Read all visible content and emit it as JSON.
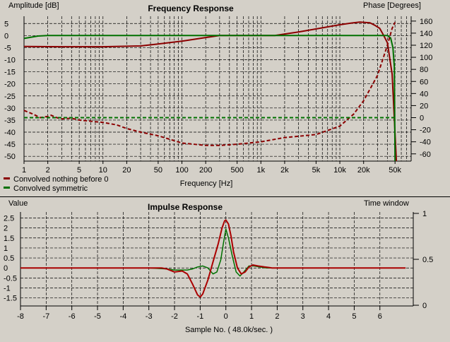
{
  "chart_data": [
    {
      "type": "line",
      "title": "Frequency Response",
      "xlabel": "Frequency [Hz]",
      "ylabel": "Amplitude [dB]",
      "y2label": "Phase [Degrees]",
      "xscale": "log",
      "xlim": [
        1,
        80000
      ],
      "ylim": [
        -52,
        8
      ],
      "y2lim": [
        -72,
        168
      ],
      "grid": true,
      "xticks": [
        {
          "v": 1,
          "l": "1"
        },
        {
          "v": 2,
          "l": "2"
        },
        {
          "v": 5,
          "l": "5"
        },
        {
          "v": 10,
          "l": "10"
        },
        {
          "v": 20,
          "l": "20"
        },
        {
          "v": 50,
          "l": "50"
        },
        {
          "v": 100,
          "l": "100"
        },
        {
          "v": 200,
          "l": "200"
        },
        {
          "v": 500,
          "l": "500"
        },
        {
          "v": 1000,
          "l": "1k"
        },
        {
          "v": 2000,
          "l": "2k"
        },
        {
          "v": 5000,
          "l": "5k"
        },
        {
          "v": 10000,
          "l": "10k"
        },
        {
          "v": 20000,
          "l": "20k"
        },
        {
          "v": 50000,
          "l": "50k"
        }
      ],
      "yticks": [
        5,
        0,
        -5,
        -10,
        -15,
        -20,
        -25,
        -30,
        -35,
        -40,
        -45,
        -50
      ],
      "y2ticks": [
        160,
        140,
        120,
        100,
        80,
        60,
        40,
        20,
        0,
        -20,
        -40,
        -60
      ],
      "legend": [
        {
          "name": "Convolved nothing before 0",
          "color": "#8b0000"
        },
        {
          "name": "Convolved symmetric",
          "color": "#007000"
        }
      ],
      "series": [
        {
          "name": "Convolved nothing before 0",
          "kind": "amplitude",
          "color": "#8b0000",
          "dash": false,
          "points": [
            [
              1,
              -4.5
            ],
            [
              3,
              -4.6
            ],
            [
              10,
              -4.6
            ],
            [
              30,
              -4.3
            ],
            [
              50,
              -3.5
            ],
            [
              100,
              -2.3
            ],
            [
              200,
              -0.8
            ],
            [
              300,
              0
            ],
            [
              600,
              0
            ],
            [
              1500,
              0
            ],
            [
              3000,
              1.5
            ],
            [
              6000,
              3.2
            ],
            [
              10000,
              4.5
            ],
            [
              14000,
              5.2
            ],
            [
              18000,
              5.6
            ],
            [
              24000,
              5.3
            ],
            [
              28000,
              4.2
            ],
            [
              32000,
              3
            ],
            [
              36000,
              0
            ],
            [
              40000,
              -3
            ],
            [
              46000,
              -16
            ],
            [
              52000,
              -52
            ]
          ]
        },
        {
          "name": "Convolved symmetric",
          "kind": "amplitude",
          "color": "#007000",
          "dash": false,
          "points": [
            [
              1,
              -1.2
            ],
            [
              1.5,
              -0.2
            ],
            [
              2,
              0
            ],
            [
              10,
              0
            ],
            [
              100,
              0
            ],
            [
              1000,
              0
            ],
            [
              10000,
              0
            ],
            [
              20000,
              0
            ],
            [
              40000,
              0
            ],
            [
              44000,
              -1
            ],
            [
              47000,
              -5
            ],
            [
              49000,
              -13
            ],
            [
              50000,
              -52
            ]
          ]
        },
        {
          "name": "Convolved nothing before 0",
          "kind": "phase",
          "color": "#8b0000",
          "dash": true,
          "points": [
            [
              1,
              12
            ],
            [
              1.3,
              6
            ],
            [
              1.6,
              0
            ],
            [
              2,
              2
            ],
            [
              2.2,
              4
            ],
            [
              2.6,
              0
            ],
            [
              3,
              -2
            ],
            [
              4,
              -1
            ],
            [
              5,
              -4
            ],
            [
              10,
              -8
            ],
            [
              15,
              -12
            ],
            [
              20,
              -18
            ],
            [
              30,
              -24
            ],
            [
              50,
              -30
            ],
            [
              100,
              -42
            ],
            [
              200,
              -46
            ],
            [
              300,
              -46
            ],
            [
              500,
              -44
            ],
            [
              1000,
              -40
            ],
            [
              2000,
              -33
            ],
            [
              5000,
              -28
            ],
            [
              10000,
              -14
            ],
            [
              15000,
              6
            ],
            [
              20000,
              28
            ],
            [
              30000,
              70
            ],
            [
              40000,
              120
            ],
            [
              46000,
              148
            ],
            [
              50000,
              158
            ]
          ]
        },
        {
          "name": "Convolved symmetric",
          "kind": "phase",
          "color": "#007000",
          "dash": true,
          "points": [
            [
              1,
              0
            ],
            [
              50000,
              0
            ]
          ]
        }
      ]
    },
    {
      "type": "line",
      "title": "Impulse Response",
      "xlabel": "Sample No. ( 48.0k/sec. )",
      "ylabel": "Value",
      "y2label": "Time window",
      "xlim": [
        -8,
        7.3
      ],
      "ylim": [
        -1.9,
        2.8
      ],
      "y2lim": [
        0,
        1
      ],
      "grid": true,
      "xticks": [
        -8,
        -7,
        -6,
        -5,
        -4,
        -3,
        -2,
        -1,
        0,
        1,
        2,
        3,
        4,
        5,
        6
      ],
      "yticks": [
        {
          "v": 2.5,
          "l": "2.5"
        },
        {
          "v": 2,
          "l": "2"
        },
        {
          "v": 1.5,
          "l": "1.5"
        },
        {
          "v": 1,
          "l": "1"
        },
        {
          "v": 0.5,
          "l": "0.5"
        },
        {
          "v": 0,
          "l": "0"
        },
        {
          "v": -0.5,
          "l": "-0.5"
        },
        {
          "v": -1,
          "l": "-1"
        },
        {
          "v": -1.5,
          "l": "-1.5"
        }
      ],
      "y2ticks": [
        {
          "v": 1,
          "l": "1"
        },
        {
          "v": 0.5,
          "l": "0.5"
        },
        {
          "v": 0,
          "l": "0"
        }
      ],
      "series": [
        {
          "name": "Convolved symmetric",
          "color": "#007000",
          "width": 1.5,
          "points": [
            [
              -8,
              0
            ],
            [
              -4,
              0
            ],
            [
              -3,
              0
            ],
            [
              -2.3,
              -0.05
            ],
            [
              -2,
              -0.1
            ],
            [
              -1.5,
              -0.1
            ],
            [
              -1.3,
              -0.05
            ],
            [
              -1.1,
              0.05
            ],
            [
              -0.9,
              0.1
            ],
            [
              -0.7,
              0
            ],
            [
              -0.5,
              -0.3
            ],
            [
              -0.35,
              -0.2
            ],
            [
              -0.2,
              0.4
            ],
            [
              -0.1,
              1.2
            ],
            [
              0,
              1.95
            ],
            [
              0.1,
              1.5
            ],
            [
              0.25,
              0.6
            ],
            [
              0.4,
              -0.2
            ],
            [
              0.55,
              -0.4
            ],
            [
              0.7,
              -0.2
            ],
            [
              0.9,
              0.1
            ],
            [
              1.1,
              0.1
            ],
            [
              1.3,
              0.05
            ],
            [
              1.6,
              0
            ],
            [
              7,
              0
            ]
          ]
        },
        {
          "name": "Convolved nothing before 0",
          "color": "#aa0000",
          "width": 2,
          "points": [
            [
              -8,
              0
            ],
            [
              -4,
              0
            ],
            [
              -3,
              0
            ],
            [
              -2.5,
              0
            ],
            [
              -2.3,
              -0.05
            ],
            [
              -2,
              -0.2
            ],
            [
              -1.7,
              -0.15
            ],
            [
              -1.5,
              -0.3
            ],
            [
              -1.3,
              -0.8
            ],
            [
              -1.1,
              -1.35
            ],
            [
              -1,
              -1.45
            ],
            [
              -0.9,
              -1.3
            ],
            [
              -0.7,
              -0.6
            ],
            [
              -0.5,
              0.3
            ],
            [
              -0.3,
              1.2
            ],
            [
              -0.15,
              2.0
            ],
            [
              -0.05,
              2.35
            ],
            [
              0,
              2.4
            ],
            [
              0.1,
              2.2
            ],
            [
              0.2,
              1.6
            ],
            [
              0.3,
              0.8
            ],
            [
              0.45,
              0
            ],
            [
              0.6,
              -0.3
            ],
            [
              0.75,
              -0.2
            ],
            [
              0.9,
              0.05
            ],
            [
              1.05,
              0.15
            ],
            [
              1.25,
              0.1
            ],
            [
              1.5,
              0.05
            ],
            [
              1.8,
              0
            ],
            [
              7,
              0
            ]
          ]
        }
      ]
    }
  ]
}
